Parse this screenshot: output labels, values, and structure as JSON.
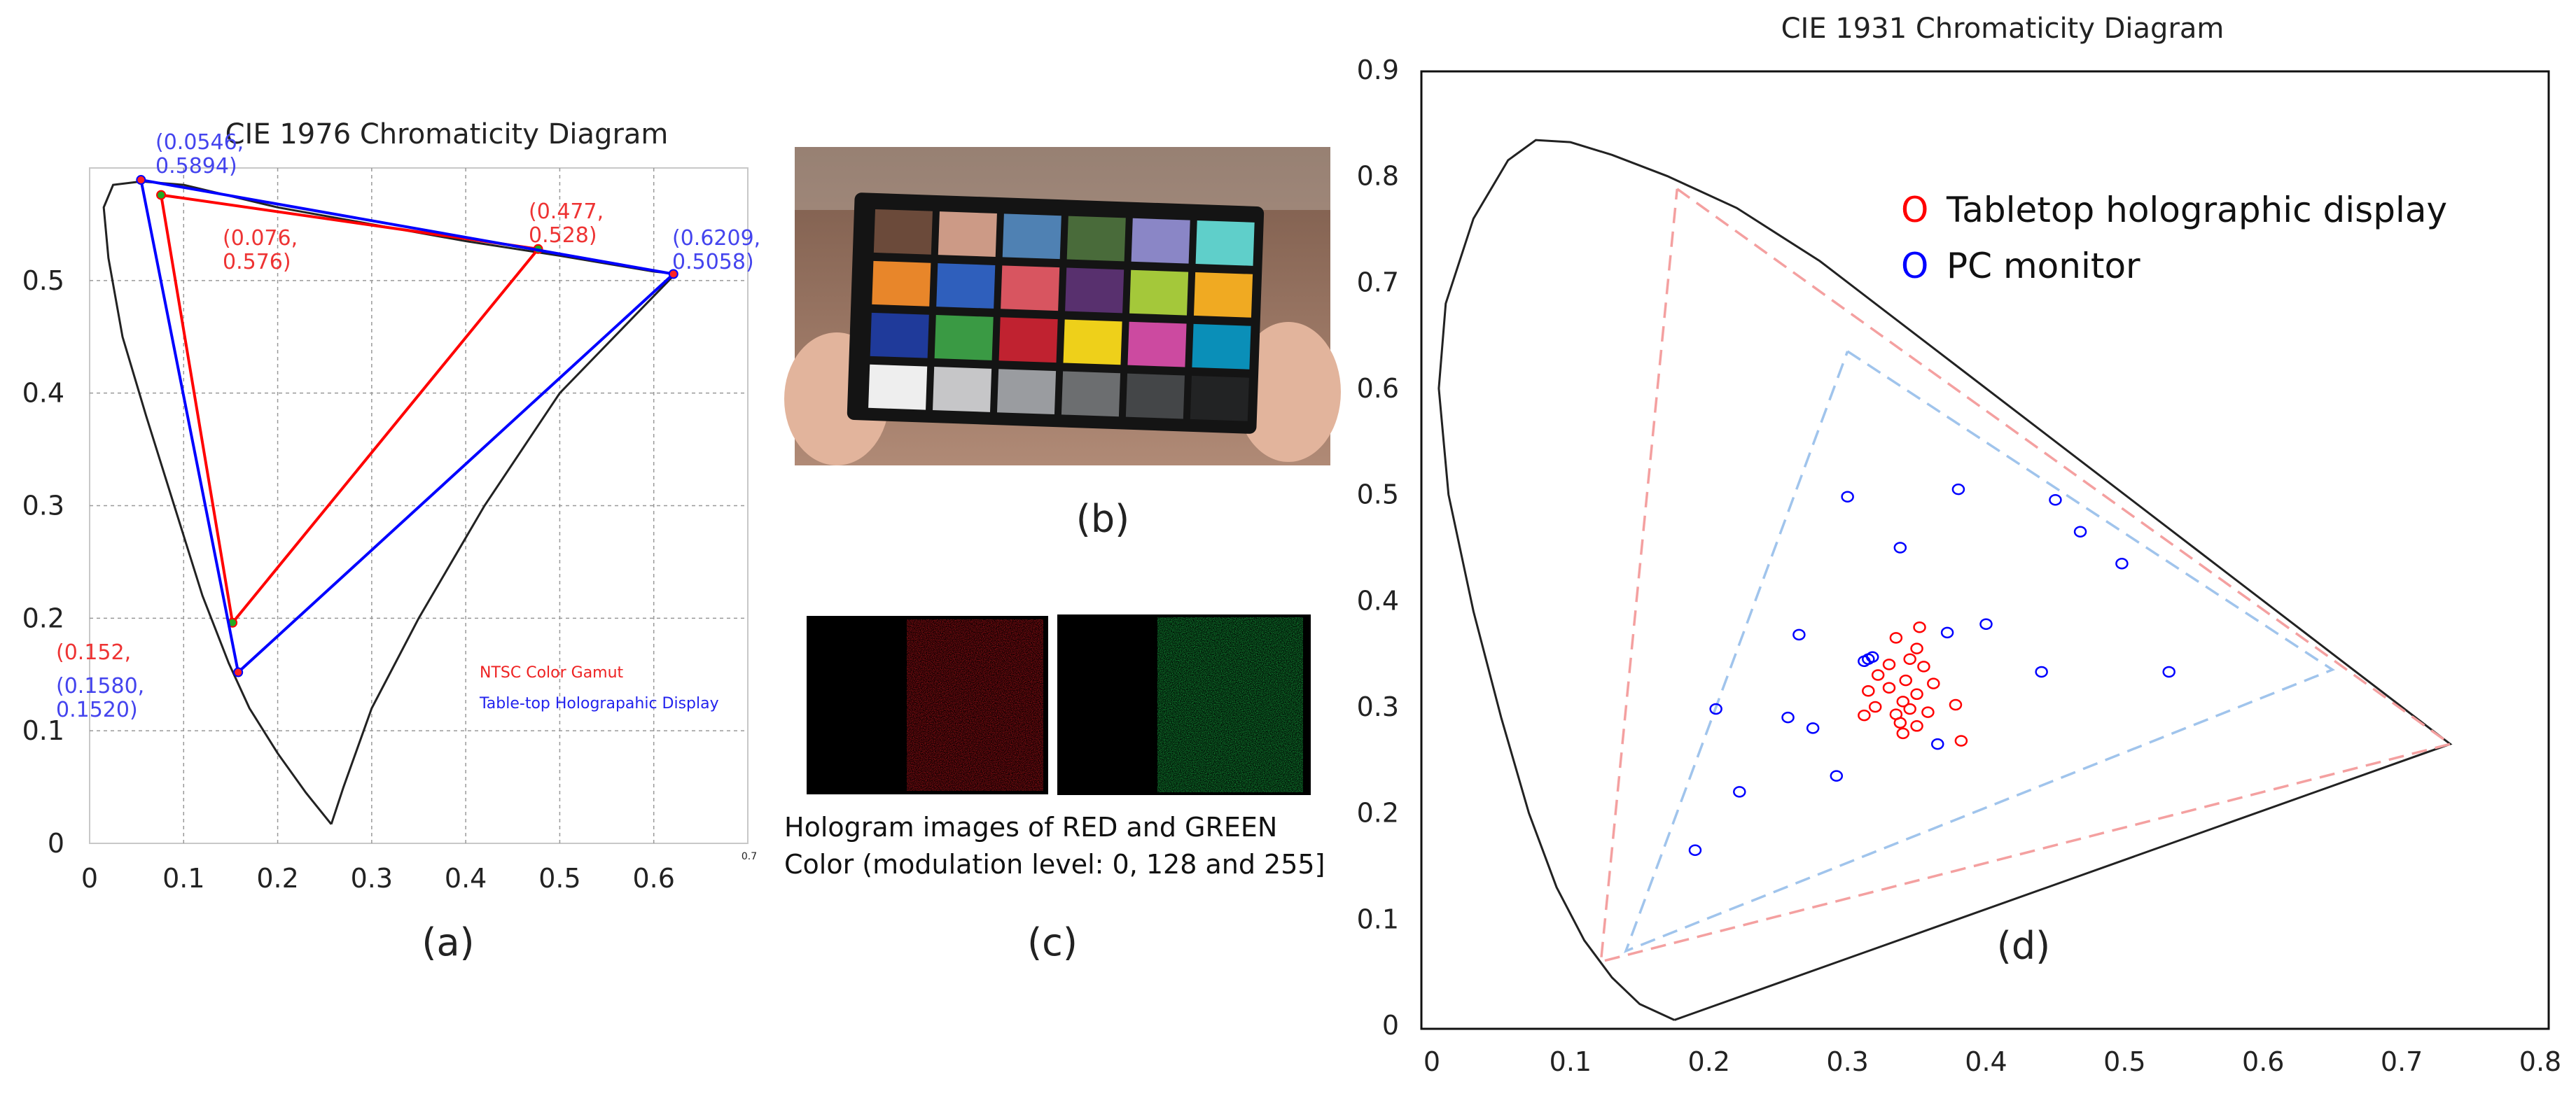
{
  "panel_labels": {
    "a": "(a)",
    "b": "(b)",
    "c": "(c)",
    "d": "(d)"
  },
  "chart_data": [
    {
      "id": "a",
      "type": "line",
      "title": "CIE 1976 Chromaticity Diagram",
      "xlabel": "",
      "ylabel": "",
      "xlim": [
        0,
        0.7
      ],
      "ylim": [
        0,
        0.6
      ],
      "x_ticks": [
        "0",
        "0.1",
        "0.2",
        "0.3",
        "0.4",
        "0.5",
        "0.6"
      ],
      "x_end_tick": "0.7",
      "y_ticks": [
        "0",
        "0.1",
        "0.2",
        "0.3",
        "0.4",
        "0.5"
      ],
      "grid": true,
      "locus": [
        [
          0.257,
          0.017
        ],
        [
          0.23,
          0.045
        ],
        [
          0.2,
          0.08
        ],
        [
          0.17,
          0.12
        ],
        [
          0.148,
          0.16
        ],
        [
          0.12,
          0.22
        ],
        [
          0.09,
          0.3
        ],
        [
          0.06,
          0.38
        ],
        [
          0.035,
          0.45
        ],
        [
          0.02,
          0.52
        ],
        [
          0.015,
          0.565
        ],
        [
          0.025,
          0.585
        ],
        [
          0.055,
          0.588
        ],
        [
          0.1,
          0.585
        ],
        [
          0.2,
          0.565
        ],
        [
          0.3,
          0.55
        ],
        [
          0.4,
          0.535
        ],
        [
          0.5,
          0.522
        ],
        [
          0.6,
          0.508
        ],
        [
          0.623,
          0.506
        ],
        [
          0.5,
          0.4
        ],
        [
          0.42,
          0.3
        ],
        [
          0.35,
          0.2
        ],
        [
          0.3,
          0.12
        ],
        [
          0.27,
          0.05
        ],
        [
          0.257,
          0.017
        ]
      ],
      "series": [
        {
          "name": "NTSC Color Gamut",
          "color": "#ff0000",
          "points": [
            [
              0.076,
              0.576
            ],
            [
              0.477,
              0.528
            ],
            [
              0.152,
              0.196
            ],
            [
              0.076,
              0.576
            ]
          ]
        },
        {
          "name": "Table-top Holograpahic Display",
          "color": "#0000ff",
          "points": [
            [
              0.0546,
              0.5894
            ],
            [
              0.6209,
              0.5058
            ],
            [
              0.158,
              0.152
            ],
            [
              0.0546,
              0.5894
            ]
          ]
        }
      ],
      "annotations": [
        {
          "lines": [
            "(0.0546,",
            "0.5894)"
          ],
          "color": "#4444ee"
        },
        {
          "lines": [
            "(0.076,",
            "0.576)"
          ],
          "color": "#ee3333"
        },
        {
          "lines": [
            "(0.477,",
            "0.528)"
          ],
          "color": "#ee3333"
        },
        {
          "lines": [
            "(0.6209,",
            "0.5058)"
          ],
          "color": "#4444ee"
        },
        {
          "lines": [
            "(0.152,"
          ],
          "color": "#ee3333"
        },
        {
          "lines": [
            "(0.1580,",
            "0.1520)"
          ],
          "color": "#4444ee"
        }
      ],
      "legend": [
        "NTSC Color Gamut",
        "Table-top Holograpahic Display"
      ]
    },
    {
      "id": "d",
      "type": "scatter",
      "title": "CIE 1931 Chromaticity Diagram",
      "xlabel": "",
      "ylabel": "",
      "xlim": [
        0,
        0.8
      ],
      "ylim": [
        0,
        0.9
      ],
      "x_ticks": [
        "0",
        "0.1",
        "0.2",
        "0.3",
        "0.4",
        "0.5",
        "0.6",
        "0.7",
        "0.8"
      ],
      "y_ticks": [
        "0",
        "0.1",
        "0.2",
        "0.3",
        "0.4",
        "0.5",
        "0.6",
        "0.7",
        "0.8",
        "0.9"
      ],
      "grid": false,
      "locus": [
        [
          0.175,
          0.005
        ],
        [
          0.15,
          0.02
        ],
        [
          0.13,
          0.045
        ],
        [
          0.11,
          0.08
        ],
        [
          0.09,
          0.13
        ],
        [
          0.07,
          0.2
        ],
        [
          0.05,
          0.29
        ],
        [
          0.03,
          0.39
        ],
        [
          0.012,
          0.5
        ],
        [
          0.005,
          0.6
        ],
        [
          0.01,
          0.68
        ],
        [
          0.03,
          0.76
        ],
        [
          0.055,
          0.815
        ],
        [
          0.075,
          0.834
        ],
        [
          0.1,
          0.832
        ],
        [
          0.13,
          0.82
        ],
        [
          0.17,
          0.8
        ],
        [
          0.22,
          0.77
        ],
        [
          0.28,
          0.72
        ],
        [
          0.35,
          0.65
        ],
        [
          0.45,
          0.55
        ],
        [
          0.55,
          0.45
        ],
        [
          0.65,
          0.35
        ],
        [
          0.735,
          0.265
        ],
        [
          0.175,
          0.005
        ]
      ],
      "series": [
        {
          "name": "Tabletop holographic display",
          "color": "#ff0000",
          "gamut": [
            [
              0.177,
              0.788
            ],
            [
              0.735,
              0.265
            ],
            [
              0.122,
              0.06
            ]
          ],
          "points": [
            [
              0.352,
              0.375
            ],
            [
              0.335,
              0.365
            ],
            [
              0.35,
              0.355
            ],
            [
              0.345,
              0.345
            ],
            [
              0.33,
              0.34
            ],
            [
              0.355,
              0.338
            ],
            [
              0.322,
              0.33
            ],
            [
              0.342,
              0.325
            ],
            [
              0.362,
              0.322
            ],
            [
              0.33,
              0.318
            ],
            [
              0.315,
              0.315
            ],
            [
              0.35,
              0.312
            ],
            [
              0.34,
              0.305
            ],
            [
              0.378,
              0.302
            ],
            [
              0.32,
              0.3
            ],
            [
              0.345,
              0.298
            ],
            [
              0.335,
              0.293
            ],
            [
              0.358,
              0.295
            ],
            [
              0.312,
              0.292
            ],
            [
              0.338,
              0.285
            ],
            [
              0.35,
              0.282
            ],
            [
              0.34,
              0.275
            ],
            [
              0.382,
              0.268
            ]
          ]
        },
        {
          "name": "PC monitor",
          "color": "#0000ff",
          "gamut": [
            [
              0.3,
              0.635
            ],
            [
              0.65,
              0.335
            ],
            [
              0.14,
              0.07
            ]
          ],
          "points": [
            [
              0.3,
              0.498
            ],
            [
              0.38,
              0.505
            ],
            [
              0.45,
              0.495
            ],
            [
              0.338,
              0.45
            ],
            [
              0.468,
              0.465
            ],
            [
              0.498,
              0.435
            ],
            [
              0.315,
              0.345
            ],
            [
              0.318,
              0.347
            ],
            [
              0.312,
              0.343
            ],
            [
              0.265,
              0.368
            ],
            [
              0.372,
              0.37
            ],
            [
              0.4,
              0.378
            ],
            [
              0.44,
              0.333
            ],
            [
              0.532,
              0.333
            ],
            [
              0.205,
              0.298
            ],
            [
              0.257,
              0.29
            ],
            [
              0.275,
              0.28
            ],
            [
              0.365,
              0.265
            ],
            [
              0.292,
              0.235
            ],
            [
              0.222,
              0.22
            ],
            [
              0.19,
              0.165
            ]
          ]
        }
      ],
      "legend": [
        {
          "marker": "O",
          "label": "Tabletop holographic display",
          "color": "#ff0000"
        },
        {
          "marker": "O",
          "label": "PC monitor",
          "color": "#0000ff"
        }
      ]
    }
  ],
  "images": {
    "b": {
      "patch_colors": [
        "#6b4a3a",
        "#cc9a86",
        "#4f81b3",
        "#496b3a",
        "#8a86c6",
        "#5fcfca",
        "#e8862a",
        "#2f5fbc",
        "#d85560",
        "#58306e",
        "#a4c83a",
        "#f0aa22",
        "#1f3a9a",
        "#3a9a44",
        "#c02230",
        "#eed01a",
        "#cc4aa0",
        "#0a8fb8",
        "#eeeeee",
        "#c6c6c8",
        "#9a9ca0",
        "#6c6e70",
        "#444648",
        "#222324"
      ]
    },
    "c": {
      "caption_line1": "Hologram images of RED and GREEN",
      "caption_line2": "Color (modulation level: 0, 128 and 255]",
      "red": "#d0141c",
      "green": "#19c64a"
    }
  }
}
